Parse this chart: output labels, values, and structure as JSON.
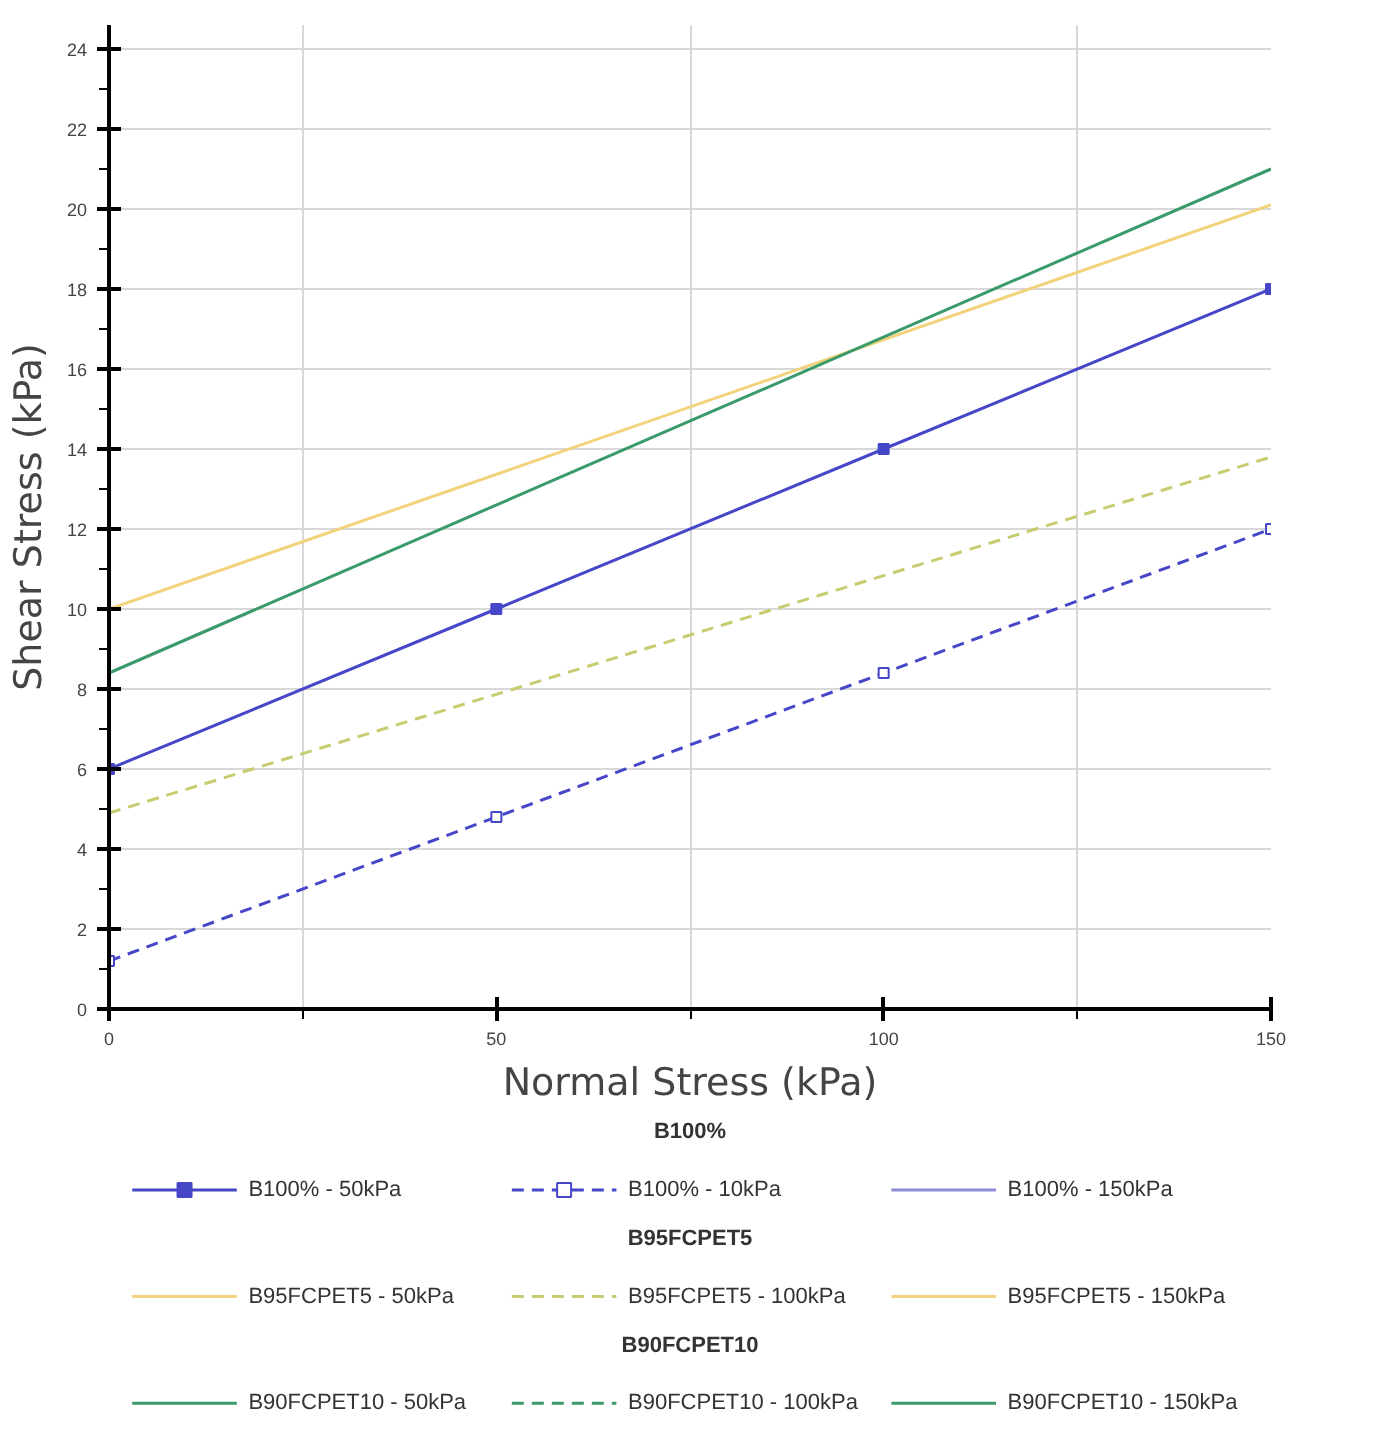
{
  "chart_data": {
    "type": "line",
    "xlabel": "Normal Stress (kPa)",
    "ylabel": "Shear Stress (kPa)",
    "legend_title": [
      "B100%",
      "B95FCPET5",
      "B90FCPET10"
    ],
    "xlim": [
      0,
      150
    ],
    "ylim": [
      0,
      24.6
    ],
    "xticks": [
      0,
      {
        "value": 25,
        "label": null
      },
      50,
      {
        "value": 75,
        "label": null
      },
      100,
      {
        "value": 125,
        "label": null
      },
      150
    ],
    "yticks": [
      0,
      {
        "value": 1,
        "label": null
      },
      2,
      {
        "value": 3,
        "label": null
      },
      4,
      {
        "value": 5,
        "label": null
      },
      6,
      {
        "value": 7,
        "label": null
      },
      8,
      {
        "value": 9,
        "label": null
      },
      10,
      {
        "value": 11,
        "label": null
      },
      12,
      {
        "value": 13,
        "label": null
      },
      14,
      {
        "value": 15,
        "label": null
      },
      16,
      {
        "value": 17,
        "label": null
      },
      18,
      {
        "value": 19,
        "label": null
      },
      20,
      {
        "value": 21,
        "label": null
      },
      22,
      {
        "value": 23,
        "label": null
      },
      24
    ],
    "grid": true,
    "legend": "bottom",
    "series": [
      {
        "name": "B100% - 50kPa",
        "color": "#4646c8",
        "line_style": "solid",
        "marker": "square",
        "x": [
          0,
          50,
          100,
          150
        ],
        "values": [
          6.0,
          10.0,
          14.0,
          18.0
        ]
      },
      {
        "name": "B100% - 10kPa",
        "color": "#4646c8",
        "line_style": "dashed",
        "marker": "square",
        "x": [
          0,
          50,
          100,
          150
        ],
        "values": [
          1.2,
          4.8,
          8.4,
          12.0
        ]
      },
      {
        "name": "B100% - 150kPa",
        "color": "#8c8cd8",
        "line_style": "solid",
        "marker": "none",
        "values": [
          null
        ]
      },
      {
        "name": "B95FCPET5 - 50kPa",
        "color": "#f2d27a",
        "line_style": "solid",
        "marker": "none",
        "x": [
          0,
          150
        ],
        "values": [
          10.0,
          20.1
        ]
      },
      {
        "name": "B95FCPET5 - 100kPa",
        "color": "#c8cc70",
        "line_style": "dashed",
        "marker": "none",
        "x": [
          0,
          150
        ],
        "values": [
          4.9,
          13.8
        ]
      },
      {
        "name": "B95FCPET5 - 150kPa",
        "color": "#f2d27a",
        "line_style": "solid",
        "marker": "none",
        "values": [
          null
        ]
      },
      {
        "name": "B90FCPET10 - 50kPa",
        "color": "#3a9a6a",
        "line_style": "solid",
        "marker": "none",
        "x": [
          0,
          150
        ],
        "values": [
          8.4,
          21.0
        ]
      },
      {
        "name": "B90FCPET10 - 100kPa",
        "color": "#3a9a6a",
        "line_style": "dashed",
        "marker": "none",
        "values": [
          null
        ]
      },
      {
        "name": "B90FCPET10 - 150kPa",
        "color": "#3a9a6a",
        "line_style": "solid",
        "marker": "none",
        "values": [
          null
        ]
      }
    ]
  }
}
